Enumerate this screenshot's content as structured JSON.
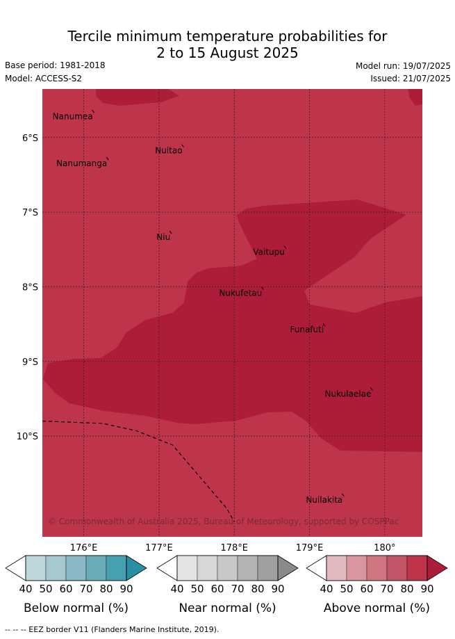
{
  "header": {
    "title_line1": "Tercile minimum temperature probabilities for",
    "title_line2": "2 to 15 August 2025",
    "base_period": "Base period: 1981-2018",
    "model": "Model: ACCESS-S2",
    "model_run": "Model run: 19/07/2025",
    "issued": "Issued: 21/07/2025"
  },
  "map": {
    "lon_range": [
      175.45,
      180.5
    ],
    "lat_range": [
      -11.35,
      -5.35
    ],
    "lon_ticks": [
      {
        "lon": 176,
        "label": "176°E"
      },
      {
        "lon": 177,
        "label": "177°E"
      },
      {
        "lon": 178,
        "label": "178°E"
      },
      {
        "lon": 179,
        "label": "179°E"
      },
      {
        "lon": 180,
        "label": "180°"
      }
    ],
    "lat_ticks": [
      {
        "lat": -6,
        "label": "6°S"
      },
      {
        "lat": -7,
        "label": "7°S"
      },
      {
        "lat": -8,
        "label": "8°S"
      },
      {
        "lat": -9,
        "label": "9°S"
      },
      {
        "lat": -10,
        "label": "10°S"
      }
    ],
    "colors": {
      "above_80": "#bd344b",
      "above_90": "#ad1c38",
      "grid": "#3c1c22"
    },
    "islands": [
      {
        "name": "Nanumea",
        "lon": 176.13,
        "lat": -5.66
      },
      {
        "name": "Nuitao",
        "lon": 177.32,
        "lat": -6.12
      },
      {
        "name": "Nanumanga",
        "lon": 176.32,
        "lat": -6.29
      },
      {
        "name": "Niu",
        "lon": 177.16,
        "lat": -7.28
      },
      {
        "name": "Vaitupu",
        "lon": 178.68,
        "lat": -7.48
      },
      {
        "name": "Nukufetau",
        "lon": 178.38,
        "lat": -8.03
      },
      {
        "name": "Funafuti",
        "lon": 179.2,
        "lat": -8.52
      },
      {
        "name": "Nukulaelae",
        "lon": 179.83,
        "lat": -9.38
      },
      {
        "name": "Nuilakita",
        "lon": 179.45,
        "lat": -10.8
      }
    ],
    "eez_border": [
      [
        175.45,
        -9.8
      ],
      [
        176.25,
        -9.83
      ],
      [
        176.7,
        -9.93
      ],
      [
        177.18,
        -10.12
      ],
      [
        177.9,
        -10.97
      ],
      [
        178.0,
        -11.15
      ]
    ],
    "copyright": "© Commonwealth of Australia 2025, Bureau of Meteorology, supported by COSPPac"
  },
  "legend": {
    "ticks": [
      "40",
      "50",
      "60",
      "70",
      "80",
      "90"
    ],
    "groups": [
      {
        "label": "Below normal (%)",
        "colors": [
          "#ffffff",
          "#bdd7dd",
          "#a5c9cf",
          "#89b9c5",
          "#6aabba",
          "#47a0b1",
          "#2b8fa3"
        ]
      },
      {
        "label": "Near normal (%)",
        "colors": [
          "#ffffff",
          "#e4e4e4",
          "#d7d7d7",
          "#c7c7c7",
          "#b3b3b3",
          "#9f9f9f",
          "#8a8a8a"
        ]
      },
      {
        "label": "Above normal (%)",
        "colors": [
          "#ffffff",
          "#e2b9bf",
          "#d9969f",
          "#ce7580",
          "#c45468",
          "#bd344b",
          "#ad1c38"
        ]
      }
    ]
  },
  "footer": {
    "eez_note": "--  --  -- EEZ border V11 (Flanders Marine Institute, 2019)."
  }
}
